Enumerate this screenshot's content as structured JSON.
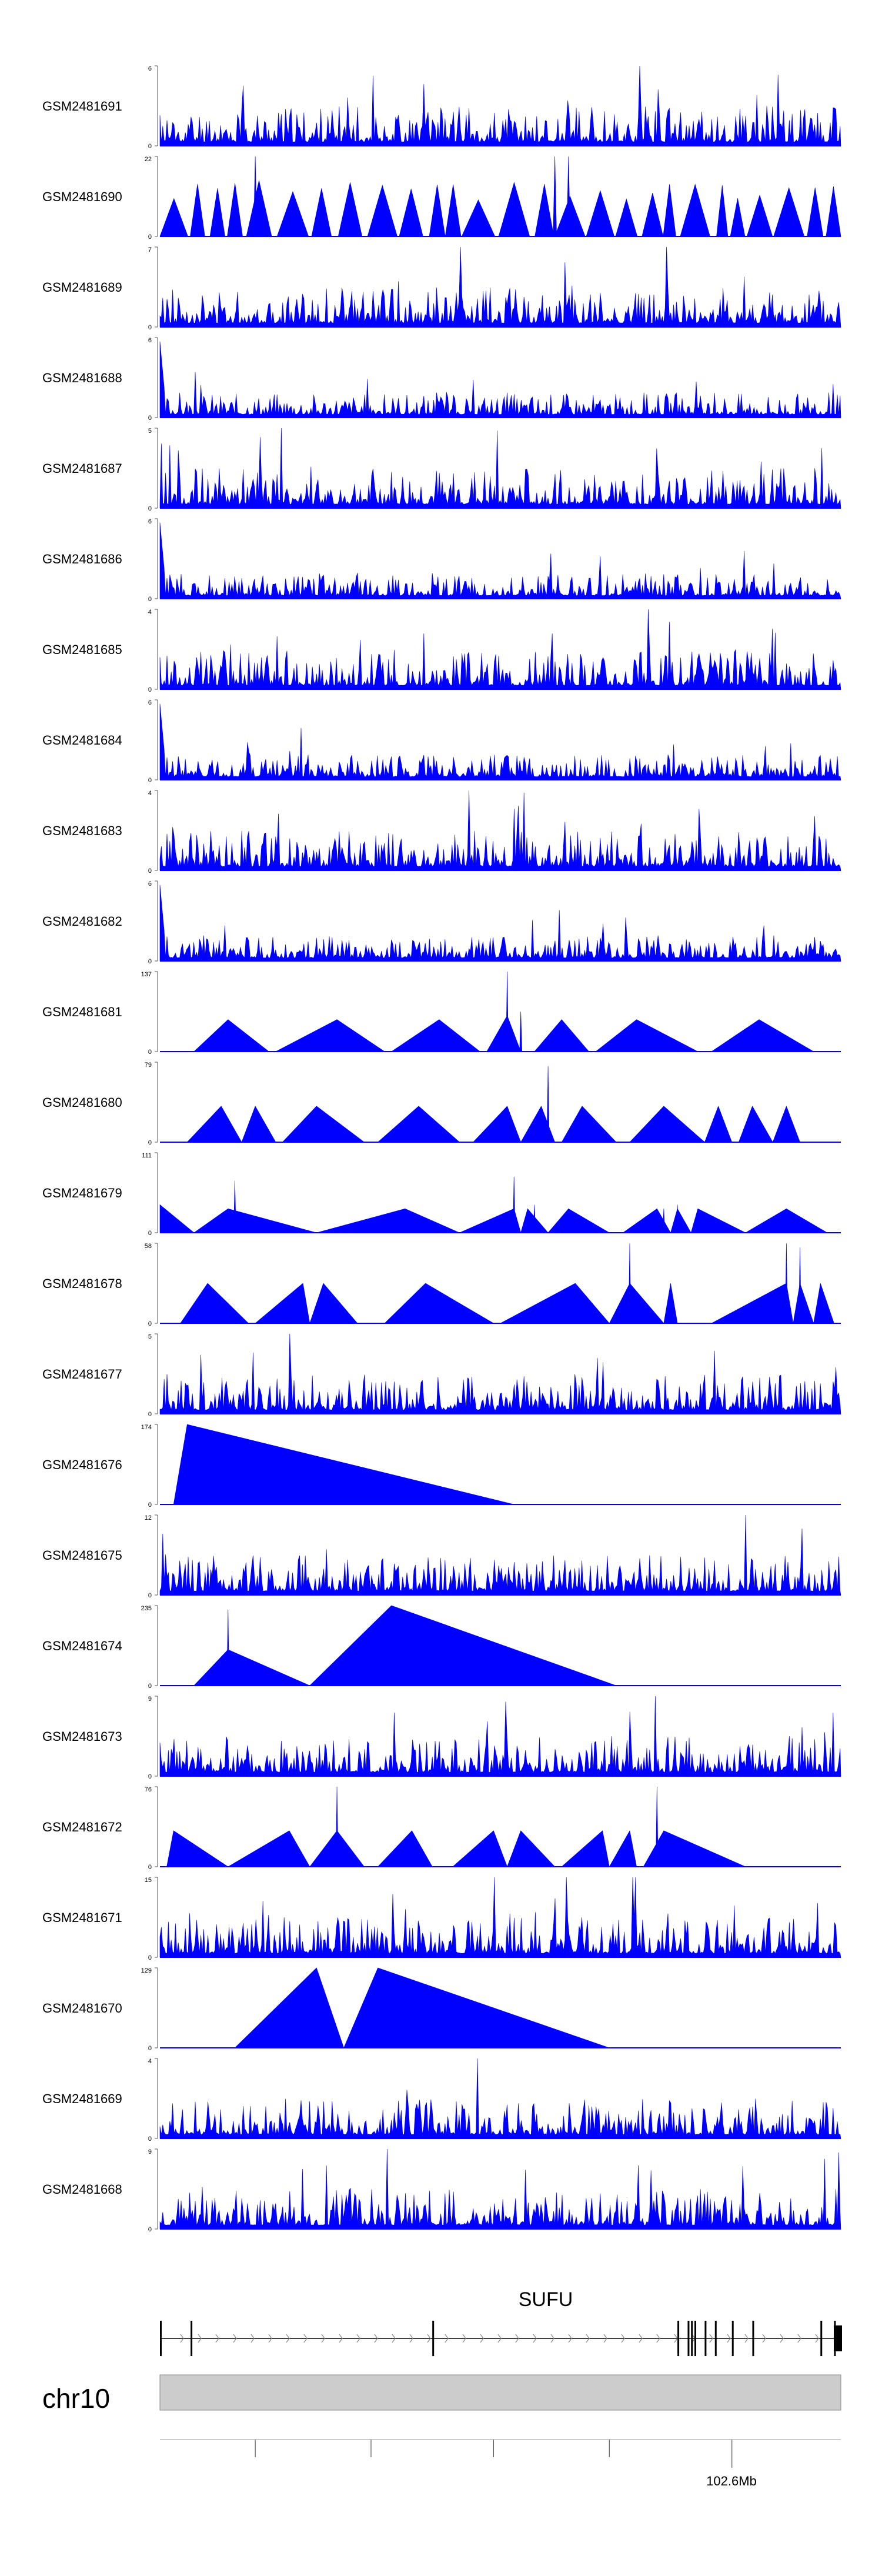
{
  "chart_data": {
    "type": "area",
    "tracks": [
      {
        "name": "GSM2481691",
        "ymax": "6",
        "peak": 6,
        "shape": "dense",
        "seed": 11
      },
      {
        "name": "GSM2481690",
        "ymax": "22",
        "peak": 22,
        "shape": "sawtooth",
        "seed": 12
      },
      {
        "name": "GSM2481689",
        "ymax": "7",
        "peak": 7,
        "shape": "dense",
        "seed": 13
      },
      {
        "name": "GSM2481688",
        "ymax": "6",
        "peak": 6,
        "shape": "dense-low",
        "seed": 14
      },
      {
        "name": "GSM2481687",
        "ymax": "5",
        "peak": 5,
        "shape": "dense",
        "seed": 15
      },
      {
        "name": "GSM2481686",
        "ymax": "6",
        "peak": 6,
        "shape": "dense-low",
        "seed": 16
      },
      {
        "name": "GSM2481685",
        "ymax": "4",
        "peak": 4,
        "shape": "dense",
        "seed": 17
      },
      {
        "name": "GSM2481684",
        "ymax": "6",
        "peak": 6,
        "shape": "dense-low",
        "seed": 18
      },
      {
        "name": "GSM2481683",
        "ymax": "4",
        "peak": 4,
        "shape": "dense",
        "seed": 19
      },
      {
        "name": "GSM2481682",
        "ymax": "6",
        "peak": 6,
        "shape": "dense-low",
        "seed": 20
      },
      {
        "name": "GSM2481681",
        "ymax": "137",
        "peak": 137,
        "shape": "sparse",
        "triangles": [
          [
            0.05,
            0.1,
            0.16,
            0.4
          ],
          [
            0.17,
            0.26,
            0.33,
            0.4
          ],
          [
            0.34,
            0.41,
            0.47,
            0.4
          ],
          [
            0.48,
            0.51,
            0.53,
            0.45
          ],
          [
            0.55,
            0.59,
            0.63,
            0.4
          ],
          [
            0.64,
            0.7,
            0.79,
            0.4
          ],
          [
            0.81,
            0.88,
            0.96,
            0.4
          ]
        ],
        "spikes": [
          [
            0.51,
            1.0
          ],
          [
            0.53,
            0.5
          ]
        ]
      },
      {
        "name": "GSM2481680",
        "ymax": "79",
        "peak": 79,
        "shape": "sparse",
        "triangles": [
          [
            0.04,
            0.09,
            0.12,
            0.45
          ],
          [
            0.12,
            0.14,
            0.17,
            0.45
          ],
          [
            0.18,
            0.23,
            0.3,
            0.45
          ],
          [
            0.32,
            0.38,
            0.44,
            0.45
          ],
          [
            0.46,
            0.51,
            0.53,
            0.45
          ],
          [
            0.53,
            0.56,
            0.58,
            0.45
          ],
          [
            0.59,
            0.62,
            0.67,
            0.45
          ],
          [
            0.69,
            0.74,
            0.8,
            0.45
          ],
          [
            0.8,
            0.82,
            0.84,
            0.45
          ],
          [
            0.85,
            0.87,
            0.9,
            0.45
          ],
          [
            0.9,
            0.92,
            0.94,
            0.45
          ]
        ],
        "spikes": [
          [
            0.57,
            0.95
          ]
        ]
      },
      {
        "name": "GSM2481679",
        "ymax": "111",
        "peak": 111,
        "shape": "sparse",
        "triangles": [
          [
            0.0,
            0.0,
            0.05,
            0.35
          ],
          [
            0.05,
            0.1,
            0.23,
            0.3
          ],
          [
            0.23,
            0.36,
            0.44,
            0.3
          ],
          [
            0.44,
            0.52,
            0.53,
            0.3
          ],
          [
            0.53,
            0.54,
            0.57,
            0.3
          ],
          [
            0.57,
            0.6,
            0.66,
            0.3
          ],
          [
            0.68,
            0.73,
            0.75,
            0.3
          ],
          [
            0.75,
            0.76,
            0.78,
            0.3
          ],
          [
            0.78,
            0.79,
            0.86,
            0.3
          ],
          [
            0.86,
            0.92,
            0.98,
            0.3
          ]
        ],
        "spikes": [
          [
            0.11,
            0.65
          ],
          [
            0.52,
            0.7
          ],
          [
            0.55,
            0.35
          ],
          [
            0.74,
            0.3
          ],
          [
            0.76,
            0.35
          ]
        ]
      },
      {
        "name": "GSM2481678",
        "ymax": "58",
        "peak": 58,
        "shape": "sparse",
        "triangles": [
          [
            0.03,
            0.07,
            0.13,
            0.5
          ],
          [
            0.14,
            0.21,
            0.22,
            0.5
          ],
          [
            0.22,
            0.24,
            0.29,
            0.5
          ],
          [
            0.33,
            0.39,
            0.49,
            0.5
          ],
          [
            0.5,
            0.61,
            0.66,
            0.5
          ],
          [
            0.66,
            0.69,
            0.74,
            0.5
          ],
          [
            0.74,
            0.75,
            0.76,
            0.5
          ],
          [
            0.81,
            0.92,
            0.93,
            0.5
          ],
          [
            0.93,
            0.94,
            0.96,
            0.5
          ],
          [
            0.96,
            0.97,
            0.99,
            0.5
          ]
        ],
        "spikes": [
          [
            0.69,
            1.0
          ],
          [
            0.24,
            0.5
          ],
          [
            0.61,
            0.4
          ],
          [
            0.92,
            1.0
          ],
          [
            0.94,
            0.95
          ]
        ]
      },
      {
        "name": "GSM2481677",
        "ymax": "5",
        "peak": 5,
        "shape": "dense",
        "seed": 21
      },
      {
        "name": "GSM2481676",
        "ymax": "174",
        "peak": 174,
        "shape": "sparse",
        "triangles": [
          [
            0.02,
            0.04,
            0.52,
            1.0
          ]
        ],
        "spikes": []
      },
      {
        "name": "GSM2481675",
        "ymax": "12",
        "peak": 12,
        "shape": "dense",
        "seed": 22
      },
      {
        "name": "GSM2481674",
        "ymax": "235",
        "peak": 235,
        "shape": "sparse",
        "triangles": [
          [
            0.05,
            0.1,
            0.22,
            0.45
          ],
          [
            0.22,
            0.34,
            0.67,
            1.0
          ]
        ],
        "spikes": [
          [
            0.1,
            0.95
          ]
        ]
      },
      {
        "name": "GSM2481673",
        "ymax": "9",
        "peak": 9,
        "shape": "dense",
        "seed": 23
      },
      {
        "name": "GSM2481672",
        "ymax": "76",
        "peak": 76,
        "shape": "sparse",
        "triangles": [
          [
            0.01,
            0.02,
            0.1,
            0.45
          ],
          [
            0.1,
            0.19,
            0.22,
            0.45
          ],
          [
            0.22,
            0.26,
            0.3,
            0.45
          ],
          [
            0.32,
            0.37,
            0.4,
            0.45
          ],
          [
            0.43,
            0.49,
            0.51,
            0.45
          ],
          [
            0.51,
            0.53,
            0.58,
            0.45
          ],
          [
            0.59,
            0.65,
            0.66,
            0.45
          ],
          [
            0.66,
            0.69,
            0.7,
            0.45
          ],
          [
            0.71,
            0.74,
            0.86,
            0.45
          ]
        ],
        "spikes": [
          [
            0.26,
            1.0
          ],
          [
            0.73,
            1.0
          ]
        ]
      },
      {
        "name": "GSM2481671",
        "ymax": "15",
        "peak": 15,
        "shape": "dense",
        "seed": 24
      },
      {
        "name": "GSM2481670",
        "ymax": "129",
        "peak": 129,
        "shape": "sparse",
        "triangles": [
          [
            0.11,
            0.23,
            0.27,
            1.0
          ],
          [
            0.27,
            0.32,
            0.66,
            1.0
          ]
        ],
        "spikes": []
      },
      {
        "name": "GSM2481669",
        "ymax": "4",
        "peak": 4,
        "shape": "dense",
        "seed": 25
      },
      {
        "name": "GSM2481668",
        "ymax": "9",
        "peak": 9,
        "shape": "dense",
        "seed": 26
      }
    ],
    "ymin_label": "0",
    "fill_color": "#0000ff",
    "gene": {
      "name": "SUFU",
      "strand": "+",
      "exon_fracs": [
        0.0,
        0.045,
        0.4,
        0.76,
        0.775,
        0.78,
        0.785,
        0.8,
        0.815,
        0.84,
        0.87,
        0.97,
        0.99
      ],
      "thick_end_frac": 1.0
    },
    "chromosome": {
      "name": "chr10",
      "tick_label": "102.6Mb",
      "tick_fracs": [
        0.14,
        0.31,
        0.49,
        0.66,
        0.84
      ]
    }
  }
}
